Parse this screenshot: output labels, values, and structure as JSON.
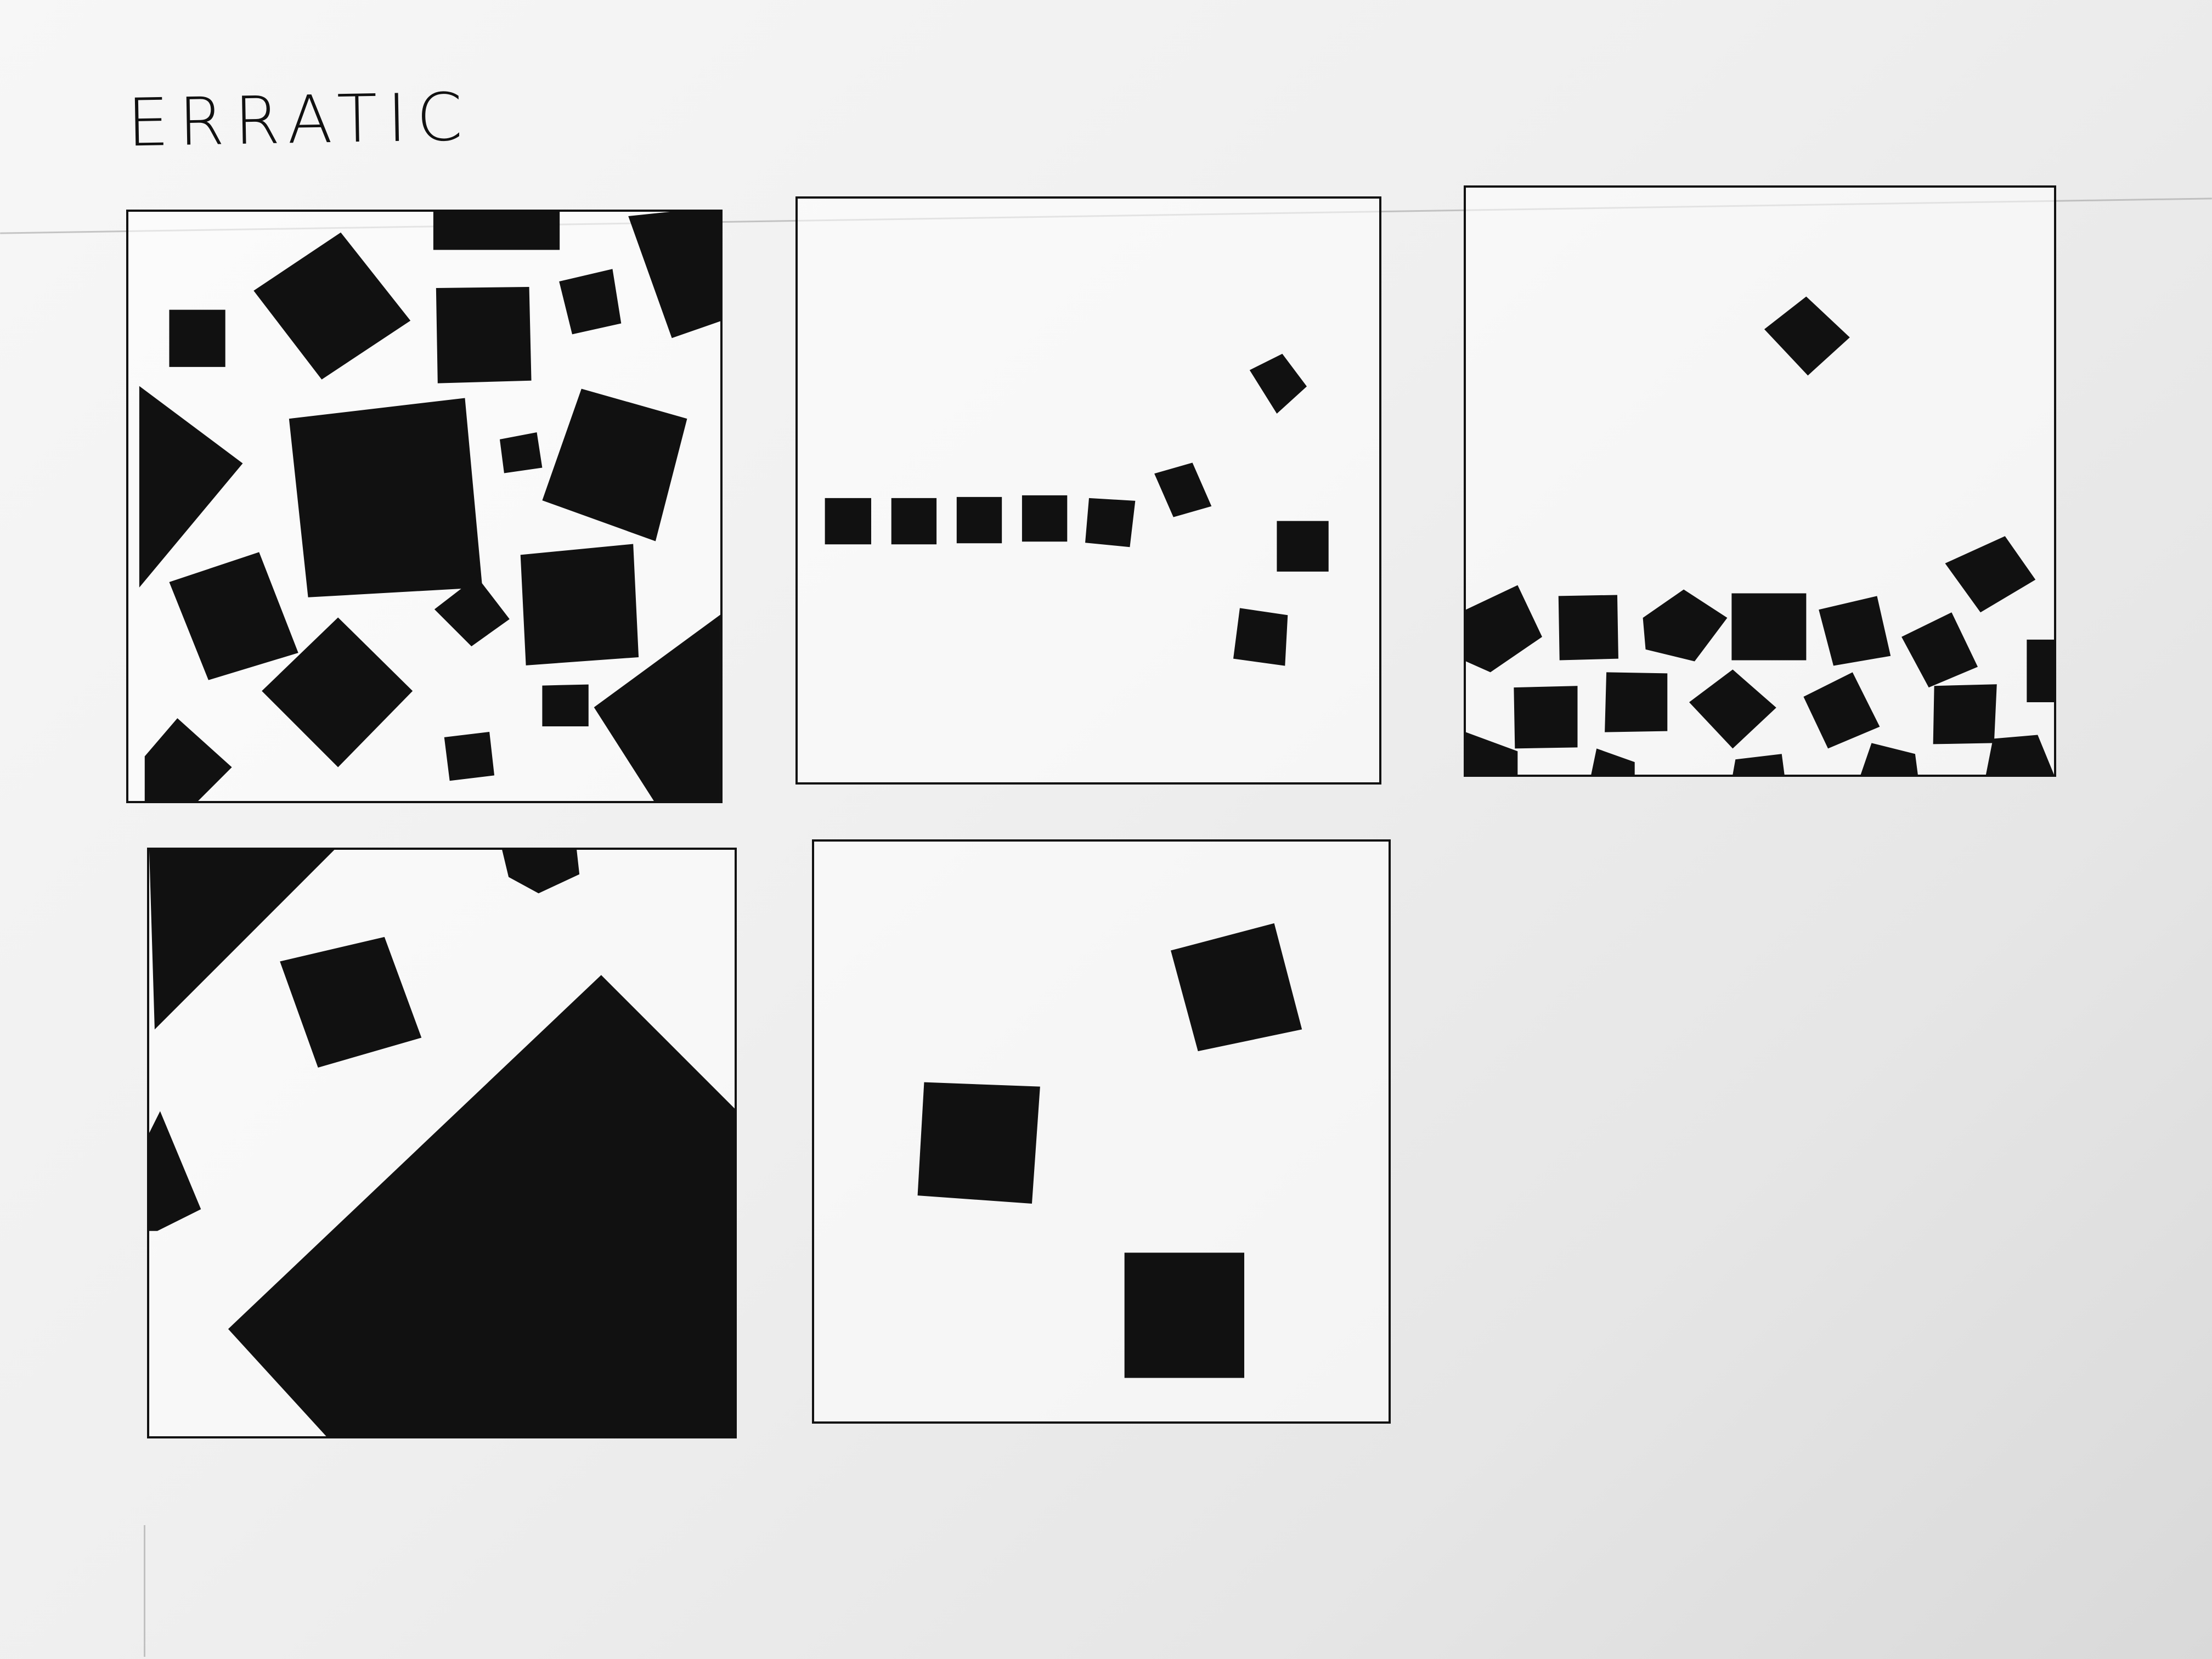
{
  "title": "ERRATIC",
  "panels": [
    {
      "name": "panel-1-scattered-squares"
    },
    {
      "name": "panel-2-line-of-squares"
    },
    {
      "name": "panel-3-pile-of-squares"
    },
    {
      "name": "panel-4-large-diamond"
    },
    {
      "name": "panel-5-three-squares"
    }
  ]
}
